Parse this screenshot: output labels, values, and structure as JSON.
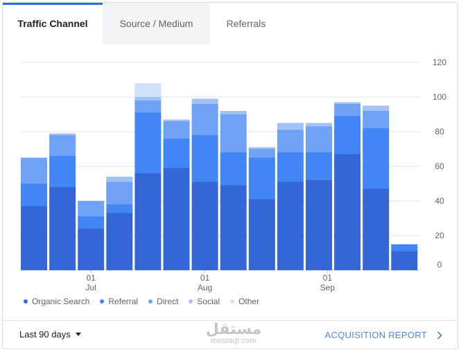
{
  "tabs": [
    {
      "label": "Traffic Channel",
      "active": true
    },
    {
      "label": "Source / Medium",
      "active": false
    },
    {
      "label": "Referrals",
      "active": false
    }
  ],
  "chart_data": {
    "type": "bar",
    "stacked": true,
    "series": [
      {
        "name": "Organic Search",
        "color": "#3566d6",
        "values": [
          37,
          48,
          24,
          33,
          56,
          59,
          51,
          49,
          41,
          51,
          52,
          67,
          47,
          11
        ]
      },
      {
        "name": "Referral",
        "color": "#4285f4",
        "values": [
          13,
          18,
          7,
          5,
          35,
          17,
          27,
          19,
          24,
          17,
          16,
          22,
          35,
          4
        ]
      },
      {
        "name": "Direct",
        "color": "#6fa1f5",
        "values": [
          15,
          12,
          9,
          13,
          7,
          10,
          18,
          22,
          5,
          13,
          15,
          7,
          10,
          0
        ]
      },
      {
        "name": "Social",
        "color": "#a2c2f7",
        "values": [
          0,
          1,
          0,
          3,
          2,
          1,
          3,
          2,
          1,
          4,
          2,
          1,
          3,
          0
        ]
      },
      {
        "name": "Other",
        "color": "#d1e1fb",
        "values": [
          0,
          0,
          0,
          0,
          8,
          0,
          0,
          0,
          0,
          0,
          0,
          0,
          0,
          0
        ]
      }
    ],
    "x_labels": [
      {
        "day": "01",
        "month": "Jul"
      },
      {
        "day": "01",
        "month": "Aug"
      },
      {
        "day": "01",
        "month": "Sep"
      }
    ],
    "x_label_bar_index": [
      2,
      6,
      10.3
    ],
    "y_ticks": [
      0,
      20,
      40,
      60,
      80,
      100,
      120
    ],
    "ylim": [
      0,
      120
    ],
    "grid": true,
    "y_axis_side": "right",
    "legend_position": "bottom-left"
  },
  "footer": {
    "date_range": "Last 90 days",
    "watermark_ar": "مستقل",
    "watermark_en": "mostaql.com",
    "report_link": "ACQUISITION REPORT"
  }
}
